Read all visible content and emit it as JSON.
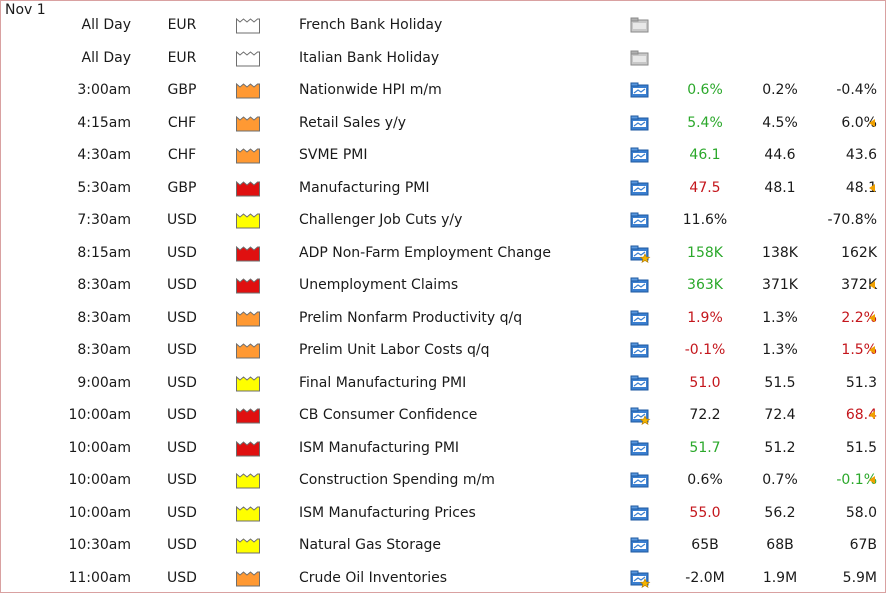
{
  "colors": {
    "better": "#2ba82b",
    "worse": "#c4161c",
    "impact_none": "#ffffff",
    "impact_low": "#ffff00",
    "impact_medium": "#ff9933",
    "impact_high": "#e01010",
    "revision_marker": "#f0a000"
  },
  "icons": {
    "impact": "factory-folder-icon",
    "detail": "detail-folder-icon",
    "detail_alert": "detail-folder-star-icon",
    "revision": "revision-triangle-icon"
  },
  "calendar": {
    "date": "Nov 1",
    "events": [
      {
        "time": "All Day",
        "currency": "EUR",
        "impact": "none",
        "title": "French Bank Holiday",
        "detail": "none",
        "actual": "",
        "actual_status": "neutral",
        "forecast": "",
        "previous": "",
        "previous_status": "neutral",
        "revised": false
      },
      {
        "time": "All Day",
        "currency": "EUR",
        "impact": "none",
        "title": "Italian Bank Holiday",
        "detail": "none",
        "actual": "",
        "actual_status": "neutral",
        "forecast": "",
        "previous": "",
        "previous_status": "neutral",
        "revised": false
      },
      {
        "time": "3:00am",
        "currency": "GBP",
        "impact": "medium",
        "title": "Nationwide HPI m/m",
        "detail": "normal",
        "actual": "0.6%",
        "actual_status": "better",
        "forecast": "0.2%",
        "previous": "-0.4%",
        "previous_status": "neutral",
        "revised": false
      },
      {
        "time": "4:15am",
        "currency": "CHF",
        "impact": "medium",
        "title": "Retail Sales y/y",
        "detail": "normal",
        "actual": "5.4%",
        "actual_status": "better",
        "forecast": "4.5%",
        "previous": "6.0%",
        "previous_status": "neutral",
        "revised": true
      },
      {
        "time": "4:30am",
        "currency": "CHF",
        "impact": "medium",
        "title": "SVME PMI",
        "detail": "normal",
        "actual": "46.1",
        "actual_status": "better",
        "forecast": "44.6",
        "previous": "43.6",
        "previous_status": "neutral",
        "revised": false
      },
      {
        "time": "5:30am",
        "currency": "GBP",
        "impact": "high",
        "title": "Manufacturing PMI",
        "detail": "normal",
        "actual": "47.5",
        "actual_status": "worse",
        "forecast": "48.1",
        "previous": "48.1",
        "previous_status": "neutral",
        "revised": true
      },
      {
        "time": "7:30am",
        "currency": "USD",
        "impact": "low",
        "title": "Challenger Job Cuts y/y",
        "detail": "normal",
        "actual": "11.6%",
        "actual_status": "neutral",
        "forecast": "",
        "previous": "-70.8%",
        "previous_status": "neutral",
        "revised": false
      },
      {
        "time": "8:15am",
        "currency": "USD",
        "impact": "high",
        "title": "ADP Non-Farm Employment Change",
        "detail": "alert",
        "actual": "158K",
        "actual_status": "better",
        "forecast": "138K",
        "previous": "162K",
        "previous_status": "neutral",
        "revised": false
      },
      {
        "time": "8:30am",
        "currency": "USD",
        "impact": "high",
        "title": "Unemployment Claims",
        "detail": "normal",
        "actual": "363K",
        "actual_status": "better",
        "forecast": "371K",
        "previous": "372K",
        "previous_status": "neutral",
        "revised": true
      },
      {
        "time": "8:30am",
        "currency": "USD",
        "impact": "medium",
        "title": "Prelim Nonfarm Productivity q/q",
        "detail": "normal",
        "actual": "1.9%",
        "actual_status": "worse",
        "forecast": "1.3%",
        "previous": "2.2%",
        "previous_status": "worse",
        "revised": true
      },
      {
        "time": "8:30am",
        "currency": "USD",
        "impact": "medium",
        "title": "Prelim Unit Labor Costs q/q",
        "detail": "normal",
        "actual": "-0.1%",
        "actual_status": "worse",
        "forecast": "1.3%",
        "previous": "1.5%",
        "previous_status": "worse",
        "revised": true
      },
      {
        "time": "9:00am",
        "currency": "USD",
        "impact": "low",
        "title": "Final Manufacturing PMI",
        "detail": "normal",
        "actual": "51.0",
        "actual_status": "worse",
        "forecast": "51.5",
        "previous": "51.3",
        "previous_status": "neutral",
        "revised": false
      },
      {
        "time": "10:00am",
        "currency": "USD",
        "impact": "high",
        "title": "CB Consumer Confidence",
        "detail": "alert",
        "actual": "72.2",
        "actual_status": "neutral",
        "forecast": "72.4",
        "previous": "68.4",
        "previous_status": "worse",
        "revised": true
      },
      {
        "time": "10:00am",
        "currency": "USD",
        "impact": "high",
        "title": "ISM Manufacturing PMI",
        "detail": "normal",
        "actual": "51.7",
        "actual_status": "better",
        "forecast": "51.2",
        "previous": "51.5",
        "previous_status": "neutral",
        "revised": false
      },
      {
        "time": "10:00am",
        "currency": "USD",
        "impact": "low",
        "title": "Construction Spending m/m",
        "detail": "normal",
        "actual": "0.6%",
        "actual_status": "neutral",
        "forecast": "0.7%",
        "previous": "-0.1%",
        "previous_status": "better",
        "revised": true
      },
      {
        "time": "10:00am",
        "currency": "USD",
        "impact": "low",
        "title": "ISM Manufacturing Prices",
        "detail": "normal",
        "actual": "55.0",
        "actual_status": "worse",
        "forecast": "56.2",
        "previous": "58.0",
        "previous_status": "neutral",
        "revised": false
      },
      {
        "time": "10:30am",
        "currency": "USD",
        "impact": "low",
        "title": "Natural Gas Storage",
        "detail": "normal",
        "actual": "65B",
        "actual_status": "neutral",
        "forecast": "68B",
        "previous": "67B",
        "previous_status": "neutral",
        "revised": false
      },
      {
        "time": "11:00am",
        "currency": "USD",
        "impact": "medium",
        "title": "Crude Oil Inventories",
        "detail": "alert",
        "actual": "-2.0M",
        "actual_status": "neutral",
        "forecast": "1.9M",
        "previous": "5.9M",
        "previous_status": "neutral",
        "revised": false
      }
    ]
  }
}
